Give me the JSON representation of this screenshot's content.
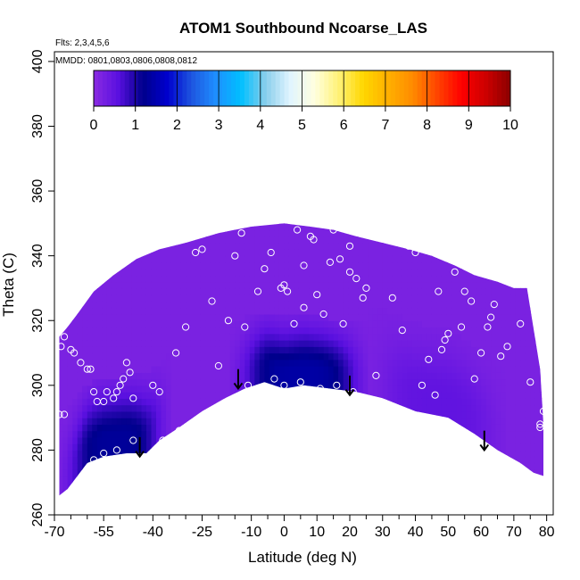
{
  "chart_data": {
    "type": "heatmap",
    "title": "ATOM1 Southbound Ncoarse_LAS",
    "annotations": [
      "Flts: 2,3,4,5,6",
      "MMDD: 0801,0803,0806,0808,0812"
    ],
    "xlabel": "Latitude (deg N)",
    "ylabel": "Theta (C)",
    "xlim": [
      -70,
      82
    ],
    "ylim": [
      260,
      403
    ],
    "x_ticks_major": [
      -70,
      -55,
      -40,
      -25,
      -10,
      0,
      10,
      20,
      30,
      40,
      50,
      60,
      70,
      80
    ],
    "x_ticks_minor": [
      -65,
      -60,
      -50,
      -45,
      -35,
      -30,
      -20,
      -15,
      -5,
      5,
      15,
      25,
      35,
      45,
      55,
      65,
      75
    ],
    "y_ticks": [
      260,
      280,
      300,
      320,
      340,
      360,
      380,
      400
    ],
    "colorbar": {
      "min": 0,
      "max": 10,
      "ticks": [
        0,
        1,
        2,
        3,
        4,
        5,
        6,
        7,
        8,
        9,
        10
      ],
      "colors": [
        "#8a2be2",
        "#5a10e0",
        "#00008b",
        "#0000cd",
        "#1e56e0",
        "#1e90ff",
        "#00bfff",
        "#87ceeb",
        "#e0f4ff",
        "#ffffe0",
        "#fff176",
        "#ffd700",
        "#ffb000",
        "#ff8c00",
        "#ff4500",
        "#ff0000",
        "#cc0000",
        "#8b0000"
      ]
    },
    "field": {
      "background_value": 0.2,
      "upper_boundary": [
        [
          -68.5,
          315
        ],
        [
          -66,
          318
        ],
        [
          -63,
          322
        ],
        [
          -58,
          329
        ],
        [
          -52,
          334
        ],
        [
          -45,
          339
        ],
        [
          -38,
          342
        ],
        [
          -30,
          344
        ],
        [
          -20,
          347
        ],
        [
          -10,
          349
        ],
        [
          0,
          350
        ],
        [
          8,
          349
        ],
        [
          15,
          348
        ],
        [
          22,
          346
        ],
        [
          30,
          344
        ],
        [
          38,
          342
        ],
        [
          45,
          340
        ],
        [
          52,
          337
        ],
        [
          58,
          334
        ],
        [
          65,
          332
        ],
        [
          70,
          330
        ],
        [
          74,
          330
        ],
        [
          78,
          305
        ],
        [
          79,
          288
        ]
      ],
      "lower_boundary": [
        [
          -68.5,
          266
        ],
        [
          -66,
          268
        ],
        [
          -60,
          276
        ],
        [
          -55,
          278
        ],
        [
          -48,
          279
        ],
        [
          -42,
          279
        ],
        [
          -38,
          283
        ],
        [
          -32,
          287
        ],
        [
          -25,
          292
        ],
        [
          -18,
          296
        ],
        [
          -12,
          299
        ],
        [
          -6,
          301
        ],
        [
          0,
          299
        ],
        [
          6,
          300
        ],
        [
          14,
          299
        ],
        [
          22,
          298
        ],
        [
          30,
          296
        ],
        [
          40,
          292
        ],
        [
          50,
          290
        ],
        [
          58,
          285
        ],
        [
          65,
          280
        ],
        [
          72,
          276
        ],
        [
          76,
          273
        ],
        [
          79,
          272
        ]
      ],
      "enhanced_regions": [
        {
          "x_range": [
            -65,
            -38
          ],
          "theta_range": [
            270,
            292
          ],
          "peak_value": 1.3
        },
        {
          "x_range": [
            -12,
            22
          ],
          "theta_range": [
            298,
            318
          ],
          "peak_value": 1.4
        },
        {
          "x_range": [
            30,
            64
          ],
          "theta_range": [
            280,
            305
          ],
          "peak_value": 0.5
        }
      ]
    },
    "arrows_lat": [
      -44,
      -14,
      20,
      61
    ],
    "arrows_theta_top": [
      284,
      305,
      303,
      286
    ],
    "observations": [
      [
        -68,
        312
      ],
      [
        -67,
        315
      ],
      [
        -68.5,
        291
      ],
      [
        -67,
        291
      ],
      [
        -65,
        311
      ],
      [
        -64,
        310
      ],
      [
        -62,
        307
      ],
      [
        -60,
        305
      ],
      [
        -59,
        305
      ],
      [
        -58,
        298
      ],
      [
        -57,
        295
      ],
      [
        -55,
        295
      ],
      [
        -54,
        298
      ],
      [
        -52,
        296
      ],
      [
        -51,
        298
      ],
      [
        -50,
        300
      ],
      [
        -49,
        302
      ],
      [
        -48,
        307
      ],
      [
        -47,
        304
      ],
      [
        -46,
        296
      ],
      [
        -46,
        283
      ],
      [
        -51,
        280
      ],
      [
        -55,
        279
      ],
      [
        -58,
        277
      ],
      [
        -43,
        278
      ],
      [
        -40,
        300
      ],
      [
        -38,
        298
      ],
      [
        -37,
        283
      ],
      [
        -33,
        310
      ],
      [
        -32,
        286
      ],
      [
        -30,
        318
      ],
      [
        -27,
        341
      ],
      [
        -25,
        342
      ],
      [
        -22,
        326
      ],
      [
        -20,
        306
      ],
      [
        -19,
        293
      ],
      [
        -17,
        320
      ],
      [
        -15,
        340
      ],
      [
        -13,
        347
      ],
      [
        -12,
        318
      ],
      [
        -11,
        300
      ],
      [
        -8,
        329
      ],
      [
        -6,
        336
      ],
      [
        -4,
        341
      ],
      [
        -3,
        302
      ],
      [
        -1,
        330
      ],
      [
        0,
        331
      ],
      [
        0,
        300
      ],
      [
        1,
        329
      ],
      [
        3,
        319
      ],
      [
        4,
        348
      ],
      [
        5,
        301
      ],
      [
        6,
        337
      ],
      [
        6,
        324
      ],
      [
        8,
        346
      ],
      [
        9,
        345
      ],
      [
        10,
        328
      ],
      [
        11,
        299
      ],
      [
        12,
        322
      ],
      [
        14,
        338
      ],
      [
        15,
        348
      ],
      [
        16,
        300
      ],
      [
        17,
        339
      ],
      [
        18,
        319
      ],
      [
        20,
        343
      ],
      [
        20,
        335
      ],
      [
        21,
        298
      ],
      [
        22,
        333
      ],
      [
        24,
        327
      ],
      [
        25,
        330
      ],
      [
        27,
        347
      ],
      [
        28,
        303
      ],
      [
        30,
        348
      ],
      [
        32,
        345
      ],
      [
        33,
        327
      ],
      [
        36,
        317
      ],
      [
        38,
        343
      ],
      [
        40,
        341
      ],
      [
        42,
        300
      ],
      [
        44,
        308
      ],
      [
        46,
        297
      ],
      [
        47,
        329
      ],
      [
        48,
        311
      ],
      [
        49,
        314
      ],
      [
        50,
        316
      ],
      [
        52,
        335
      ],
      [
        54,
        318
      ],
      [
        55,
        329
      ],
      [
        57,
        326
      ],
      [
        58,
        302
      ],
      [
        60,
        310
      ],
      [
        62,
        318
      ],
      [
        63,
        321
      ],
      [
        64,
        325
      ],
      [
        66,
        309
      ],
      [
        68,
        312
      ],
      [
        70,
        333
      ],
      [
        72,
        319
      ],
      [
        75,
        301
      ],
      [
        78,
        287
      ],
      [
        78,
        288
      ],
      [
        79,
        292
      ]
    ],
    "legend": "top"
  }
}
